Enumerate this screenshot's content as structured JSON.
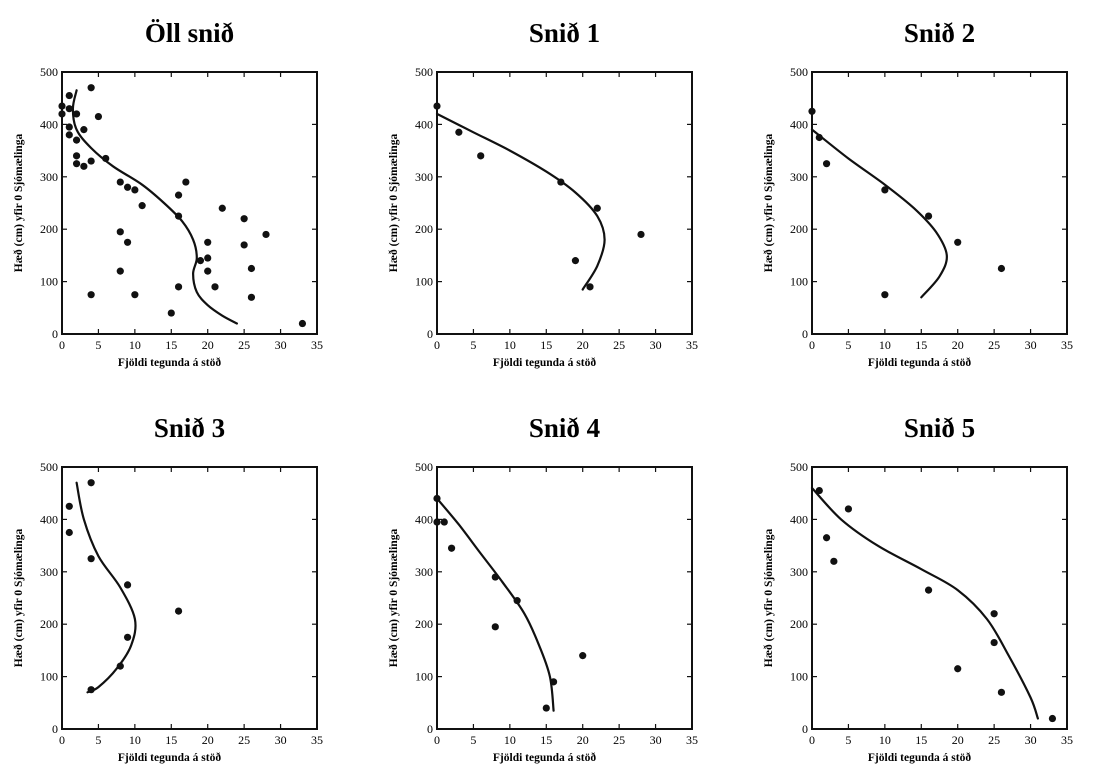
{
  "chart_data": [
    {
      "type": "scatter",
      "title": "Öll snið",
      "xlabel": "Fjöldi tegunda á stöð",
      "ylabel": "Hæð (cm) yfir 0 Sjómælinga",
      "xlim": [
        0,
        35
      ],
      "ylim": [
        0,
        500
      ],
      "xticks": [
        0,
        5,
        10,
        15,
        20,
        25,
        30,
        35
      ],
      "yticks": [
        0,
        100,
        200,
        300,
        400,
        500
      ],
      "points": [
        [
          0,
          435
        ],
        [
          0,
          420
        ],
        [
          1,
          455
        ],
        [
          1,
          430
        ],
        [
          1,
          395
        ],
        [
          1,
          380
        ],
        [
          2,
          420
        ],
        [
          2,
          370
        ],
        [
          2,
          340
        ],
        [
          2,
          325
        ],
        [
          3,
          390
        ],
        [
          3,
          320
        ],
        [
          4,
          470
        ],
        [
          4,
          330
        ],
        [
          5,
          415
        ],
        [
          6,
          335
        ],
        [
          4,
          75
        ],
        [
          8,
          290
        ],
        [
          8,
          195
        ],
        [
          8,
          120
        ],
        [
          9,
          280
        ],
        [
          9,
          175
        ],
        [
          10,
          275
        ],
        [
          10,
          75
        ],
        [
          11,
          245
        ],
        [
          15,
          40
        ],
        [
          16,
          265
        ],
        [
          16,
          225
        ],
        [
          16,
          90
        ],
        [
          17,
          290
        ],
        [
          19,
          140
        ],
        [
          20,
          175
        ],
        [
          20,
          145
        ],
        [
          20,
          120
        ],
        [
          21,
          90
        ],
        [
          22,
          240
        ],
        [
          25,
          220
        ],
        [
          25,
          170
        ],
        [
          26,
          125
        ],
        [
          26,
          70
        ],
        [
          28,
          190
        ],
        [
          33,
          20
        ]
      ],
      "curve": [
        [
          2,
          465
        ],
        [
          1.5,
          430
        ],
        [
          2,
          390
        ],
        [
          4,
          355
        ],
        [
          7,
          320
        ],
        [
          11,
          285
        ],
        [
          14,
          250
        ],
        [
          16.5,
          215
        ],
        [
          18,
          180
        ],
        [
          18.5,
          145
        ],
        [
          18,
          115
        ],
        [
          18.5,
          80
        ],
        [
          20,
          55
        ],
        [
          22,
          35
        ],
        [
          24,
          20
        ]
      ]
    },
    {
      "type": "scatter",
      "title": "Snið 1",
      "xlabel": "Fjöldi tegunda á stöð",
      "ylabel": "Hæð (cm) yfir 0 Sjómælinga",
      "xlim": [
        0,
        35
      ],
      "ylim": [
        0,
        500
      ],
      "xticks": [
        0,
        5,
        10,
        15,
        20,
        25,
        30,
        35
      ],
      "yticks": [
        0,
        100,
        200,
        300,
        400,
        500
      ],
      "points": [
        [
          0,
          435
        ],
        [
          3,
          385
        ],
        [
          6,
          340
        ],
        [
          17,
          290
        ],
        [
          22,
          240
        ],
        [
          19,
          140
        ],
        [
          21,
          90
        ],
        [
          28,
          190
        ]
      ],
      "curve": [
        [
          0,
          420
        ],
        [
          5,
          385
        ],
        [
          10,
          350
        ],
        [
          15,
          310
        ],
        [
          19,
          270
        ],
        [
          22,
          225
        ],
        [
          23,
          180
        ],
        [
          22,
          130
        ],
        [
          20,
          85
        ]
      ]
    },
    {
      "type": "scatter",
      "title": "Snið 2",
      "xlabel": "Fjöldi tegunda á stöð",
      "ylabel": "Hæð (cm) yfir 0 Sjómælinga",
      "xlim": [
        0,
        35
      ],
      "ylim": [
        0,
        500
      ],
      "xticks": [
        0,
        5,
        10,
        15,
        20,
        25,
        30,
        35
      ],
      "yticks": [
        0,
        100,
        200,
        300,
        400,
        500
      ],
      "points": [
        [
          0,
          425
        ],
        [
          1,
          375
        ],
        [
          2,
          325
        ],
        [
          10,
          275
        ],
        [
          16,
          225
        ],
        [
          20,
          175
        ],
        [
          10,
          75
        ],
        [
          26,
          125
        ]
      ],
      "curve": [
        [
          0,
          390
        ],
        [
          5,
          335
        ],
        [
          10,
          285
        ],
        [
          14,
          240
        ],
        [
          17,
          195
        ],
        [
          18.5,
          150
        ],
        [
          17.5,
          110
        ],
        [
          15,
          70
        ]
      ]
    },
    {
      "type": "scatter",
      "title": "Snið 3",
      "xlabel": "Fjöldi tegunda á stöð",
      "ylabel": "Hæð (cm) yfir 0 Sjómælinga",
      "xlim": [
        0,
        35
      ],
      "ylim": [
        0,
        500
      ],
      "xticks": [
        0,
        5,
        10,
        15,
        20,
        25,
        30,
        35
      ],
      "yticks": [
        0,
        100,
        200,
        300,
        400,
        500
      ],
      "points": [
        [
          1,
          425
        ],
        [
          1,
          375
        ],
        [
          4,
          470
        ],
        [
          4,
          325
        ],
        [
          9,
          275
        ],
        [
          16,
          225
        ],
        [
          9,
          175
        ],
        [
          8,
          120
        ],
        [
          4,
          75
        ]
      ],
      "curve": [
        [
          2,
          470
        ],
        [
          3,
          400
        ],
        [
          5,
          330
        ],
        [
          8,
          270
        ],
        [
          10,
          210
        ],
        [
          9.5,
          160
        ],
        [
          7.5,
          115
        ],
        [
          5,
          80
        ],
        [
          3.5,
          70
        ]
      ]
    },
    {
      "type": "scatter",
      "title": "Snið 4",
      "xlabel": "Fjöldi tegunda á stöð",
      "ylabel": "Hæð (cm) yfir 0 Sjómælinga",
      "xlim": [
        0,
        35
      ],
      "ylim": [
        0,
        500
      ],
      "xticks": [
        0,
        5,
        10,
        15,
        20,
        25,
        30,
        35
      ],
      "yticks": [
        0,
        100,
        200,
        300,
        400,
        500
      ],
      "points": [
        [
          0,
          440
        ],
        [
          0,
          395
        ],
        [
          1,
          395
        ],
        [
          2,
          345
        ],
        [
          8,
          290
        ],
        [
          11,
          245
        ],
        [
          8,
          195
        ],
        [
          20,
          140
        ],
        [
          16,
          90
        ],
        [
          15,
          40
        ]
      ],
      "curve": [
        [
          0,
          440
        ],
        [
          3,
          390
        ],
        [
          6,
          335
        ],
        [
          9,
          280
        ],
        [
          12,
          220
        ],
        [
          14,
          160
        ],
        [
          15.5,
          100
        ],
        [
          16,
          35
        ]
      ]
    },
    {
      "type": "scatter",
      "title": "Snið 5",
      "xlabel": "Fjöldi tegunda á stöð",
      "ylabel": "Hæð (cm) yfir 0 Sjómælinga",
      "xlim": [
        0,
        35
      ],
      "ylim": [
        0,
        500
      ],
      "xticks": [
        0,
        5,
        10,
        15,
        20,
        25,
        30,
        35
      ],
      "yticks": [
        0,
        100,
        200,
        300,
        400,
        500
      ],
      "points": [
        [
          1,
          455
        ],
        [
          2,
          365
        ],
        [
          3,
          320
        ],
        [
          5,
          420
        ],
        [
          16,
          265
        ],
        [
          25,
          220
        ],
        [
          25,
          165
        ],
        [
          20,
          115
        ],
        [
          26,
          70
        ],
        [
          33,
          20
        ]
      ],
      "curve": [
        [
          0,
          460
        ],
        [
          4,
          400
        ],
        [
          9,
          350
        ],
        [
          15,
          305
        ],
        [
          20,
          265
        ],
        [
          24,
          210
        ],
        [
          27,
          140
        ],
        [
          30,
          60
        ],
        [
          31,
          20
        ]
      ]
    }
  ]
}
